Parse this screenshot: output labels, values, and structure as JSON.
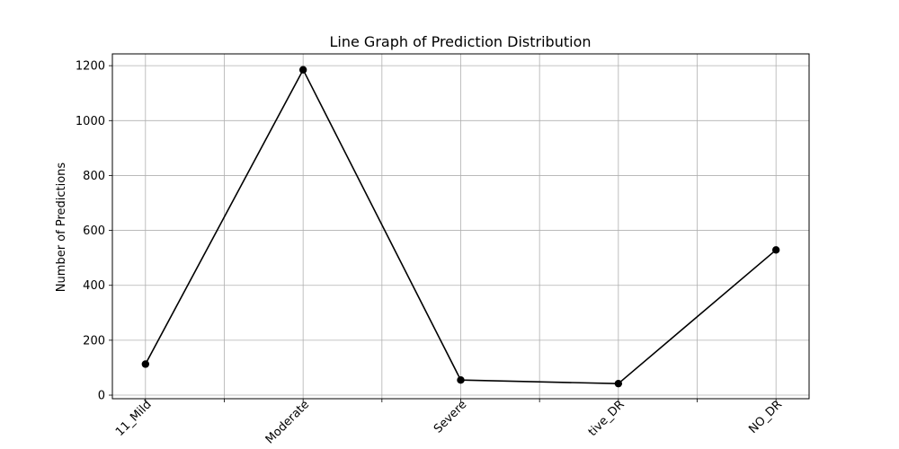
{
  "chart_data": {
    "type": "line",
    "title": "Line Graph of Prediction Distribution",
    "xlabel": "",
    "ylabel": "Number of Predictions",
    "categories": [
      "11_Mild",
      "Moderate",
      "Severe",
      "tive_DR",
      "NO_DR"
    ],
    "values": [
      113,
      1185,
      55,
      42,
      529
    ],
    "ylim": [
      -13,
      1243
    ],
    "yticks": [
      0,
      200,
      400,
      600,
      800,
      1000,
      1200
    ],
    "grid": true,
    "line_color": "#000000",
    "marker": "circle"
  }
}
